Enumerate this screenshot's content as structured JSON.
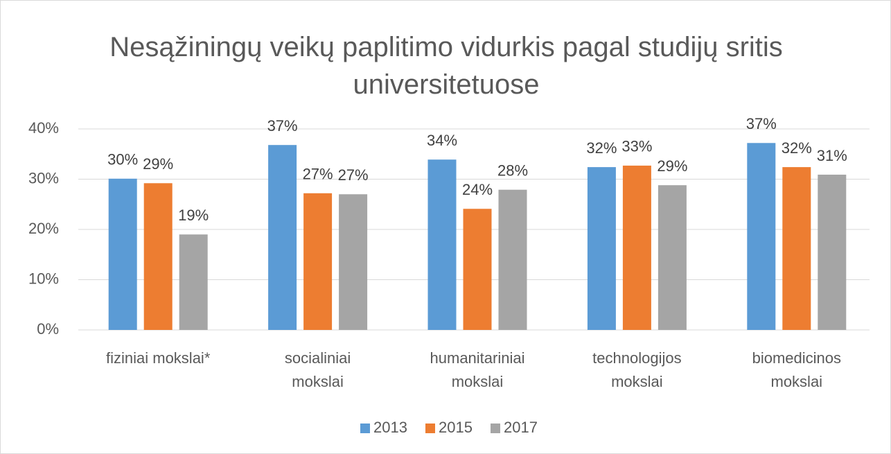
{
  "chart_data": {
    "type": "bar",
    "title": "Nesąžiningų veikų paplitimo vidurkis pagal studijų sritis universitetuose",
    "categories": [
      "fiziniai mokslai*",
      "socialiniai mokslai",
      "humanitariniai mokslai",
      "technologijos mokslai",
      "biomedicinos mokslai"
    ],
    "series": [
      {
        "name": "2013",
        "color": "#5b9bd5",
        "values": [
          30.1,
          36.8,
          33.9,
          32.4,
          37.2
        ],
        "value_labels": [
          "30%",
          "37%",
          "34%",
          "32%",
          "37%"
        ]
      },
      {
        "name": "2015",
        "color": "#ed7d31",
        "values": [
          29.2,
          27.2,
          24.1,
          32.7,
          32.4
        ],
        "value_labels": [
          "29%",
          "27%",
          "24%",
          "33%",
          "32%"
        ]
      },
      {
        "name": "2017",
        "color": "#a5a5a5",
        "values": [
          19.0,
          27.0,
          27.9,
          28.8,
          30.9
        ],
        "value_labels": [
          "19%",
          "27%",
          "28%",
          "29%",
          "31%"
        ]
      }
    ],
    "ylim": [
      0,
      40
    ],
    "yticks": [
      {
        "value": 0,
        "label": "0%"
      },
      {
        "value": 10,
        "label": "10%"
      },
      {
        "value": 20,
        "label": "20%"
      },
      {
        "value": 30,
        "label": "30%"
      },
      {
        "value": 40,
        "label": "40%"
      }
    ],
    "grid": true,
    "legend": "bottom"
  }
}
